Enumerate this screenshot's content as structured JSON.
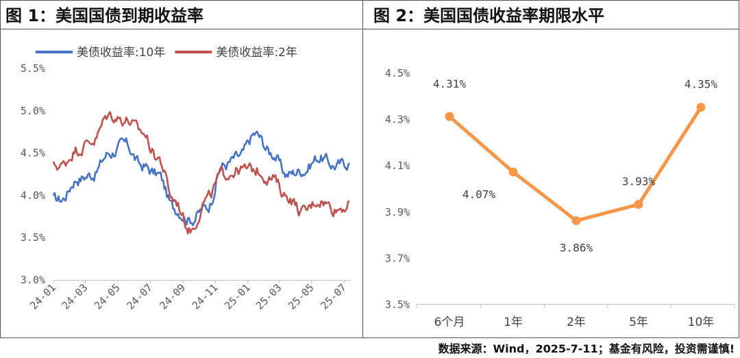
{
  "panels": {
    "left_title": "图 1：美国国债到期收益率",
    "right_title": "图 2：美国国债收益率期限水平"
  },
  "footer": "数据来源：Wind，2025-7-11；基金有风险，投资需谨慎!",
  "chart_data": [
    {
      "type": "line",
      "title": "图 1：美国国债到期收益率",
      "xlabel": "",
      "ylabel": "",
      "ylim": [
        3.0,
        5.5
      ],
      "yticks": [
        "3.0%",
        "3.5%",
        "4.0%",
        "4.5%",
        "5.0%",
        "5.5%"
      ],
      "xticks": [
        "24-01",
        "24-03",
        "24-05",
        "24-07",
        "24-09",
        "24-11",
        "25-01",
        "25-03",
        "25-05",
        "25-07"
      ],
      "xrange": [
        "2024-01",
        "2025-07-11"
      ],
      "grid": false,
      "legend": "top-left",
      "series": [
        {
          "name": "美债收益率:10年",
          "color": "#4472C4",
          "x": [
            "2024-01",
            "2024-02",
            "2024-03",
            "2024-04",
            "2024-05",
            "2024-06",
            "2024-07",
            "2024-08",
            "2024-09",
            "2024-10",
            "2024-11",
            "2024-12",
            "2025-01",
            "2025-02",
            "2025-03",
            "2025-04",
            "2025-05",
            "2025-06",
            "2025-07"
          ],
          "values": [
            3.95,
            4.2,
            4.25,
            4.5,
            4.6,
            4.35,
            4.25,
            3.85,
            3.72,
            3.85,
            4.35,
            4.45,
            4.72,
            4.5,
            4.25,
            4.3,
            4.45,
            4.35,
            4.4
          ]
        },
        {
          "name": "美债收益率:2年",
          "color": "#C0504D",
          "x": [
            "2024-01",
            "2024-02",
            "2024-03",
            "2024-04",
            "2024-05",
            "2024-06",
            "2024-07",
            "2024-08",
            "2024-09",
            "2024-10",
            "2024-11",
            "2024-12",
            "2025-01",
            "2025-02",
            "2025-03",
            "2025-04",
            "2025-05",
            "2025-06",
            "2025-07"
          ],
          "values": [
            4.35,
            4.55,
            4.65,
            4.95,
            4.9,
            4.75,
            4.45,
            3.95,
            3.6,
            3.95,
            4.25,
            4.3,
            4.3,
            4.2,
            4.0,
            3.8,
            3.95,
            3.85,
            3.9
          ]
        }
      ]
    },
    {
      "type": "line",
      "title": "图 2：美国国债收益率期限水平",
      "xlabel": "",
      "ylabel": "",
      "ylim": [
        3.5,
        4.5
      ],
      "yticks": [
        "3.5%",
        "3.7%",
        "3.9%",
        "4.1%",
        "4.3%",
        "4.5%"
      ],
      "categories": [
        "6个月",
        "1年",
        "2年",
        "5年",
        "10年"
      ],
      "values": [
        4.31,
        4.07,
        3.86,
        3.93,
        4.35
      ],
      "data_labels": [
        "4.31%",
        "4.07%",
        "3.86%",
        "3.93%",
        "4.35%"
      ],
      "color": "#F79646",
      "grid": false
    }
  ]
}
